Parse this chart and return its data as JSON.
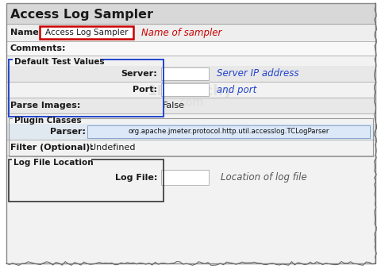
{
  "title": "Access Log Sampler",
  "panel_bg": "#f2f2f2",
  "row_light": "#f2f2f2",
  "row_white": "#ffffff",
  "row_dark": "#e8e8e8",
  "text_color": "#1a1a1a",
  "red_color": "#cc0000",
  "blue_hint": "#2244cc",
  "black_hint": "#444444",
  "fields": {
    "name_label": "Name:",
    "name_value": "Access Log Sampler",
    "name_hint": "Name of sampler",
    "comments_label": "Comments:",
    "dtv_title": "Default Test Values",
    "server_label": "Server:",
    "server_hint": "Server IP address",
    "port_label": "Port:",
    "port_hint": "and port",
    "parse_label": "Parse Images:",
    "parse_value": "False",
    "plugin_title": "Plugin Classes",
    "parser_label": "Parser:",
    "parser_value": "org.apache.jmeter.protocol.http.util.accesslog.TCLogParser",
    "filter_label": "Filter (Optional):",
    "filter_value": "Undefined",
    "logfile_section": "Log File Location",
    "logfile_label": "Log File:",
    "logfile_hint": "Location of log file",
    "watermark_1": "1Dikitechy",
    "watermark_2": ".com"
  }
}
